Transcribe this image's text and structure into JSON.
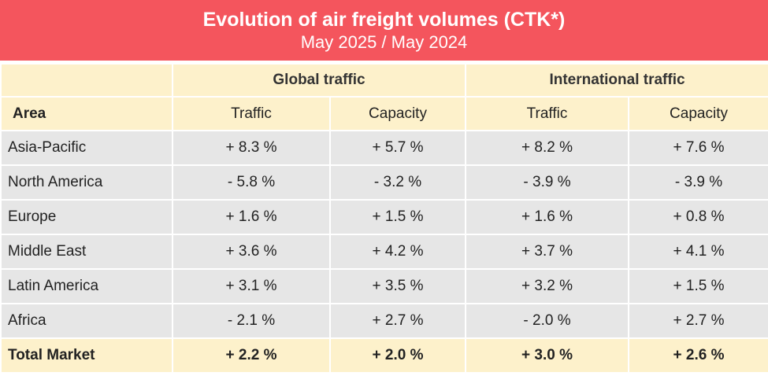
{
  "title": "Evolution of air freight volumes (CTK*)",
  "subtitle": "May 2025 / May 2024",
  "group_headers": {
    "global": "Global traffic",
    "international": "International traffic"
  },
  "column_headers": {
    "area": "Area",
    "global_traffic": "Traffic",
    "global_capacity": "Capacity",
    "intl_traffic": "Traffic",
    "intl_capacity": "Capacity"
  },
  "rows": [
    {
      "area": "Asia-Pacific",
      "global_traffic": "+ 8.3 %",
      "global_capacity": "+ 5.7 %",
      "intl_traffic": "+ 8.2 %",
      "intl_capacity": "+ 7.6 %"
    },
    {
      "area": "North America",
      "global_traffic": "- 5.8 %",
      "global_capacity": "- 3.2 %",
      "intl_traffic": "- 3.9 %",
      "intl_capacity": "- 3.9 %"
    },
    {
      "area": "Europe",
      "global_traffic": "+ 1.6 %",
      "global_capacity": "+ 1.5 %",
      "intl_traffic": "+ 1.6 %",
      "intl_capacity": "+ 0.8 %"
    },
    {
      "area": "Middle East",
      "global_traffic": "+ 3.6 %",
      "global_capacity": "+ 4.2 %",
      "intl_traffic": "+ 3.7 %",
      "intl_capacity": "+ 4.1 %"
    },
    {
      "area": "Latin America",
      "global_traffic": "+ 3.1 %",
      "global_capacity": "+ 3.5 %",
      "intl_traffic": "+ 3.2 %",
      "intl_capacity": "+ 1.5 %"
    },
    {
      "area": "Africa",
      "global_traffic": "- 2.1 %",
      "global_capacity": "+ 2.7 %",
      "intl_traffic": "- 2.0 %",
      "intl_capacity": "+ 2.7 %"
    }
  ],
  "total": {
    "area": "Total Market",
    "global_traffic": "+ 2.2 %",
    "global_capacity": "+ 2.0 %",
    "intl_traffic": "+ 3.0 %",
    "intl_capacity": "+ 2.6 %"
  },
  "colors": {
    "title_band": "#f4555d",
    "header_fill": "#fdf1cb",
    "row_fill": "#e6e6e6"
  }
}
